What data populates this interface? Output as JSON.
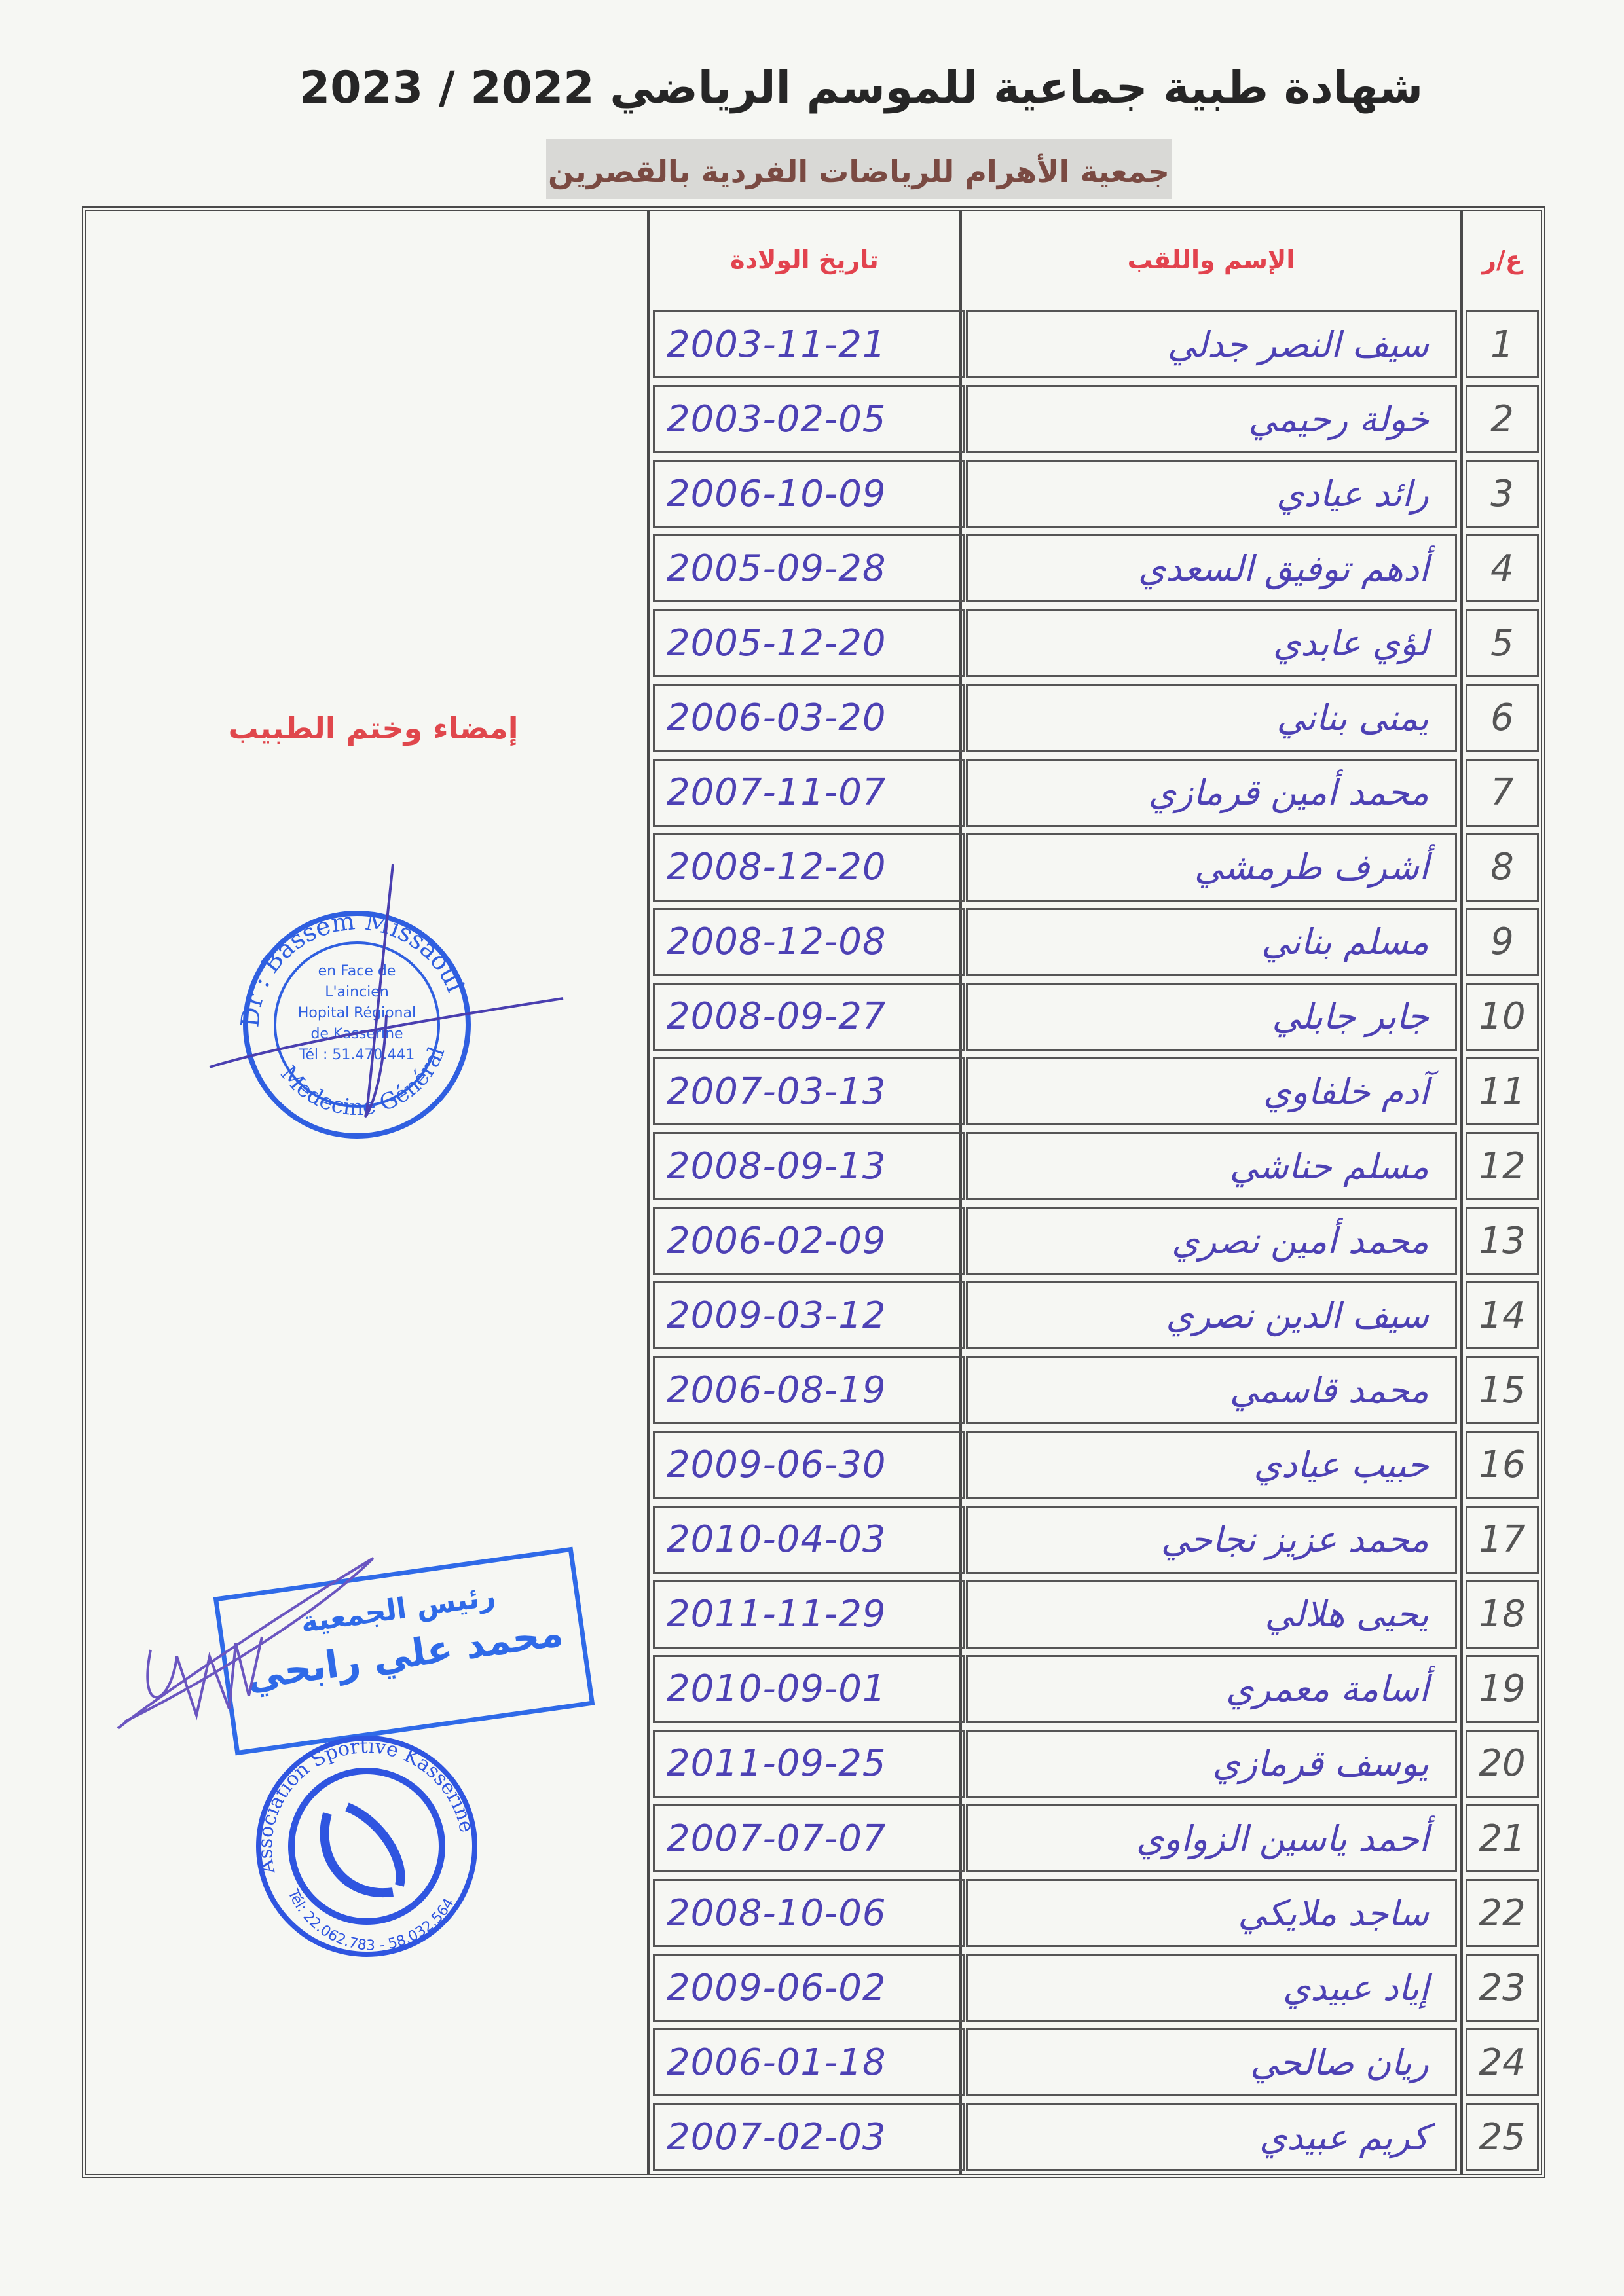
{
  "header": {
    "title": "شهادة طبية جماعية للموسم الرياضي 2022 / 2023",
    "subtitle": "جمعية الأهرام للرياضات الفردية بالقصرين"
  },
  "table": {
    "columns": {
      "number": "ع/ر",
      "name": "الإسم واللقب",
      "birth_date": "تاريخ الولادة"
    },
    "rows": [
      {
        "num": "1",
        "name": "سيف النصر جدلي",
        "date": "2003-11-21"
      },
      {
        "num": "2",
        "name": "خولة رحيمي",
        "date": "2003-02-05"
      },
      {
        "num": "3",
        "name": "رائد عيادي",
        "date": "2006-10-09"
      },
      {
        "num": "4",
        "name": "أدهم توفيق السعدي",
        "date": "2005-09-28"
      },
      {
        "num": "5",
        "name": "لؤي عابدي",
        "date": "2005-12-20"
      },
      {
        "num": "6",
        "name": "يمنى بناني",
        "date": "2006-03-20"
      },
      {
        "num": "7",
        "name": "محمد أمين قرمازي",
        "date": "2007-11-07"
      },
      {
        "num": "8",
        "name": "أشرف طرمشي",
        "date": "2008-12-20"
      },
      {
        "num": "9",
        "name": "مسلم بناني",
        "date": "2008-12-08"
      },
      {
        "num": "10",
        "name": "جابر جابلي",
        "date": "2008-09-27"
      },
      {
        "num": "11",
        "name": "آدم خلفاوي",
        "date": "2007-03-13"
      },
      {
        "num": "12",
        "name": "مسلم حناشي",
        "date": "2008-09-13"
      },
      {
        "num": "13",
        "name": "محمد أمين نصري",
        "date": "2006-02-09"
      },
      {
        "num": "14",
        "name": "سيف الدين نصري",
        "date": "2009-03-12"
      },
      {
        "num": "15",
        "name": "محمد قاسمي",
        "date": "2006-08-19"
      },
      {
        "num": "16",
        "name": "حبيب عيادي",
        "date": "2009-06-30"
      },
      {
        "num": "17",
        "name": "محمد عزيز نجاحي",
        "date": "2010-04-03"
      },
      {
        "num": "18",
        "name": "يحيى هلالي",
        "date": "2011-11-29"
      },
      {
        "num": "19",
        "name": "أسامة معمري",
        "date": "2010-09-01"
      },
      {
        "num": "20",
        "name": "يوسف قرمازي",
        "date": "2011-09-25"
      },
      {
        "num": "21",
        "name": "أحمد ياسين الزواوي",
        "date": "2007-07-07"
      },
      {
        "num": "22",
        "name": "ساجد ملايكي",
        "date": "2008-10-06"
      },
      {
        "num": "23",
        "name": "إياد عبيدي",
        "date": "2009-06-02"
      },
      {
        "num": "24",
        "name": "ريان صالحي",
        "date": "2006-01-18"
      },
      {
        "num": "25",
        "name": "كريم عبيدي",
        "date": "2007-02-03"
      }
    ]
  },
  "signature_section": {
    "label": "إمضاء وختم الطبيب",
    "doctor_stamp": {
      "name": "Dr : Bassem Missaoui",
      "lines": [
        "en Face de",
        "L'aincien",
        "Hopital Régional",
        "de Kasserine",
        "Tél : 51.470.441"
      ],
      "specialty": "Medecine Générale"
    },
    "president_stamp": {
      "role": "رئيس الجمعية",
      "name": "محمد علي رابحي"
    },
    "club_stamp": {
      "ring_text": "Association Sportive Kasserine",
      "phone": "Tél: 22.062.783 - 58.032.564"
    }
  },
  "colors": {
    "header_red": "#e2434e",
    "handwriting_blue": "#4d41b4",
    "stamp_blue": "#2f5fe0",
    "subtitle_brown": "#7a4a42"
  }
}
